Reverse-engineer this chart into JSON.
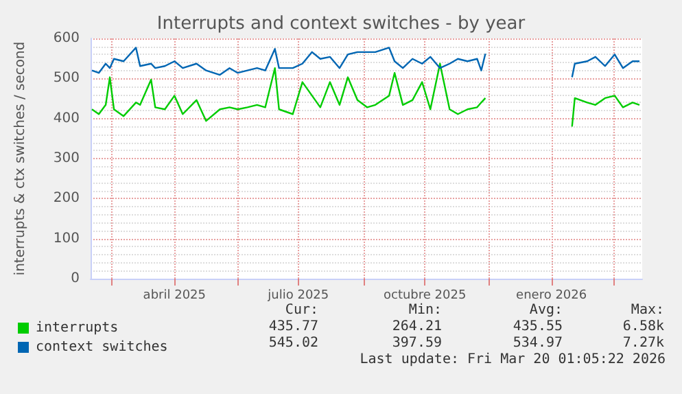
{
  "chart_data": {
    "type": "line",
    "title": "Interrupts and context switches - by year",
    "ylabel": "interrupts & ctx switches / second",
    "x": [
      "2025-02-15",
      "2025-02-20",
      "2025-02-25",
      "2025-02-28",
      "2025-03-03",
      "2025-03-10",
      "2025-03-19",
      "2025-03-22",
      "2025-03-30",
      "2025-04-02",
      "2025-04-09",
      "2025-04-16",
      "2025-04-22",
      "2025-05-02",
      "2025-05-09",
      "2025-05-19",
      "2025-05-26",
      "2025-06-01",
      "2025-06-08",
      "2025-06-15",
      "2025-06-21",
      "2025-06-28",
      "2025-07-01",
      "2025-07-11",
      "2025-07-18",
      "2025-07-25",
      "2025-07-31",
      "2025-08-07",
      "2025-08-14",
      "2025-08-20",
      "2025-08-27",
      "2025-09-03",
      "2025-09-09",
      "2025-09-19",
      "2025-09-23",
      "2025-09-29",
      "2025-10-06",
      "2025-10-13",
      "2025-10-19",
      "2025-10-26",
      "2025-11-02",
      "2025-11-08",
      "2025-11-15",
      "2025-11-22",
      "2025-11-25",
      "2025-11-28",
      "2025-12-31",
      "2026-01-30",
      "2026-02-01",
      "2026-02-10",
      "2026-02-16",
      "2026-02-23",
      "2026-03-02",
      "2026-03-08",
      "2026-03-15",
      "2026-03-20"
    ],
    "series": [
      {
        "name": "interrupts",
        "color": "#00cc00",
        "values": [
          423,
          411,
          434,
          503,
          423,
          406,
          440,
          434,
          497,
          428,
          423,
          457,
          411,
          446,
          394,
          423,
          428,
          423,
          428,
          434,
          428,
          526,
          423,
          411,
          491,
          457,
          428,
          491,
          434,
          503,
          446,
          428,
          434,
          457,
          514,
          434,
          446,
          491,
          423,
          537,
          423,
          411,
          423,
          428,
          440,
          451,
          null,
          380,
          451,
          440,
          434,
          451,
          457,
          428,
          440,
          434
        ]
      },
      {
        "name": "context switches",
        "color": "#0066b3",
        "values": [
          520,
          514,
          537,
          526,
          549,
          543,
          577,
          531,
          537,
          526,
          531,
          543,
          526,
          537,
          520,
          509,
          526,
          514,
          520,
          526,
          520,
          574,
          526,
          526,
          537,
          566,
          549,
          554,
          526,
          560,
          566,
          566,
          566,
          577,
          543,
          526,
          549,
          537,
          554,
          526,
          537,
          549,
          543,
          549,
          520,
          562,
          null,
          503,
          537,
          543,
          554,
          531,
          560,
          526,
          543,
          543
        ]
      }
    ],
    "xlim": [
      "2025-02-14",
      "2026-03-22"
    ],
    "xticks": [
      {
        "value": "2025-03-01",
        "label": null
      },
      {
        "value": "2025-04-16",
        "label": "abril 2025"
      },
      {
        "value": "2025-06-01",
        "label": null
      },
      {
        "value": "2025-07-15",
        "label": "julio 2025"
      },
      {
        "value": "2025-09-01",
        "label": null
      },
      {
        "value": "2025-10-15",
        "label": "octubre 2025"
      },
      {
        "value": "2025-12-01",
        "label": null
      },
      {
        "value": "2026-01-15",
        "label": "enero 2026"
      },
      {
        "value": "2026-03-01",
        "label": null
      }
    ],
    "ylim": [
      0,
      600
    ],
    "yticks": [
      0,
      100,
      200,
      300,
      400,
      500,
      600
    ],
    "grid": true,
    "legend": "bottom left",
    "marker": "none",
    "line_style": "solid",
    "annotations": [
      "Cur:",
      "Min:",
      "Avg:",
      "Max:",
      "435.77",
      "264.21",
      "435.55",
      "6.58k",
      "545.02",
      "397.59",
      "534.97",
      "7.27k",
      "Last update: Fri Mar 20 01:05:22 2026"
    ]
  }
}
